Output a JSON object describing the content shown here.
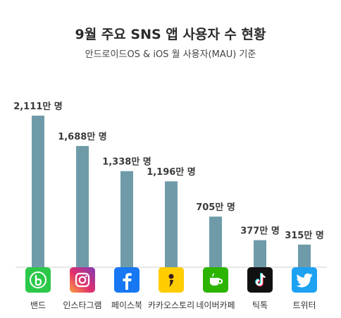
{
  "header": {
    "title": "9월 주요 SNS 앱 사용자 수 현황",
    "subtitle": "안드로이드OS & iOS 월 사용자(MAU) 기준"
  },
  "bar_color": "#6f9ba9",
  "chart_data": {
    "type": "bar",
    "title": "9월 주요 SNS 앱 사용자 수 현황",
    "subtitle": "안드로이드OS & iOS 월 사용자(MAU) 기준",
    "categories": [
      "밴드",
      "인스타그램",
      "페이스북",
      "카카오스토리",
      "네이버카페",
      "틱톡",
      "트위터"
    ],
    "values": [
      2111,
      1688,
      1338,
      1196,
      705,
      377,
      315
    ],
    "value_labels": [
      "2,111만 명",
      "1,688만 명",
      "1,338만 명",
      "1,196만 명",
      "705만 명",
      "377만 명",
      "315만 명"
    ],
    "unit": "만 명",
    "ylim": [
      0,
      2111
    ],
    "grid": false,
    "legend": "none"
  },
  "apps": [
    {
      "name": "밴드",
      "icon": "band-icon",
      "color": "#2bc84a"
    },
    {
      "name": "인스타그램",
      "icon": "instagram-icon",
      "color": "#c13584"
    },
    {
      "name": "페이스북",
      "icon": "facebook-icon",
      "color": "#1877f2"
    },
    {
      "name": "카카오스토리",
      "icon": "kakaostory-icon",
      "color": "#ffcd00"
    },
    {
      "name": "네이버카페",
      "icon": "naver-cafe-icon",
      "color": "#2db400"
    },
    {
      "name": "틱톡",
      "icon": "tiktok-icon",
      "color": "#111111"
    },
    {
      "name": "트위터",
      "icon": "twitter-icon",
      "color": "#1da1f2"
    }
  ]
}
